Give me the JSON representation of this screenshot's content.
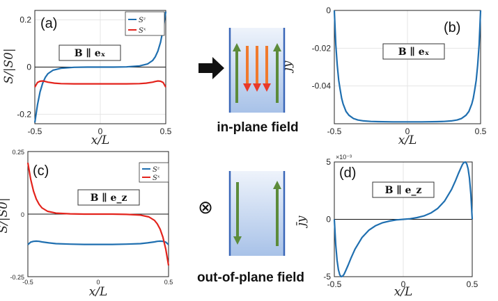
{
  "chart_data": [
    {
      "id": "a",
      "type": "line",
      "panel_label": "(a)",
      "field_box": "B ∥ eₓ",
      "xlabel": "x/L",
      "ylabel": "S/|S0|",
      "xlim": [
        -0.5,
        0.5
      ],
      "ylim": [
        -0.24,
        0.24
      ],
      "xticks": [
        "-0.5",
        "0",
        "0.5"
      ],
      "yticks": [
        {
          "v": 0.2,
          "t": "0.2"
        },
        {
          "v": 0,
          "t": "0"
        },
        {
          "v": -0.2,
          "t": "-0.2"
        }
      ],
      "grid": true,
      "legend": "top-right",
      "series": [
        {
          "name": "Sz",
          "color": "#1f6fb0",
          "x": [
            -0.5,
            -0.48,
            -0.46,
            -0.44,
            -0.42,
            -0.4,
            -0.36,
            -0.3,
            -0.2,
            -0.1,
            0,
            0.1,
            0.2,
            0.3,
            0.36,
            0.4,
            0.42,
            0.44,
            0.46,
            0.48,
            0.5
          ],
          "y": [
            -0.235,
            -0.16,
            -0.105,
            -0.068,
            -0.044,
            -0.028,
            -0.013,
            -0.005,
            -0.001,
            0,
            0,
            0,
            0.001,
            0.005,
            0.013,
            0.028,
            0.044,
            0.068,
            0.105,
            0.16,
            0.235
          ]
        },
        {
          "name": "Sx",
          "color": "#e3231c",
          "x": [
            -0.5,
            -0.48,
            -0.46,
            -0.44,
            -0.42,
            -0.4,
            -0.35,
            -0.3,
            -0.2,
            -0.1,
            0,
            0.1,
            0.2,
            0.3,
            0.35,
            0.4,
            0.42,
            0.44,
            0.46,
            0.48,
            0.5
          ],
          "y": [
            -0.085,
            -0.065,
            -0.06,
            -0.059,
            -0.061,
            -0.064,
            -0.068,
            -0.07,
            -0.071,
            -0.071,
            -0.071,
            -0.071,
            -0.071,
            -0.07,
            -0.068,
            -0.064,
            -0.061,
            -0.059,
            -0.06,
            -0.065,
            -0.085
          ]
        }
      ]
    },
    {
      "id": "b",
      "type": "line",
      "panel_label": "(b)",
      "field_box": "B ∥ eₓ",
      "xlabel": "x/L",
      "ylabel": "j̄y",
      "xlim": [
        -0.5,
        0.5
      ],
      "ylim": [
        -0.06,
        0
      ],
      "xticks": [
        "-0.5",
        "0",
        "0.5"
      ],
      "yticks": [
        {
          "v": 0,
          "t": "0"
        },
        {
          "v": -0.02,
          "t": "-0.02"
        },
        {
          "v": -0.04,
          "t": "-0.04"
        }
      ],
      "grid": true,
      "series": [
        {
          "name": "",
          "color": "#1f6fb0",
          "x": [
            -0.5,
            -0.49,
            -0.48,
            -0.47,
            -0.46,
            -0.45,
            -0.44,
            -0.42,
            -0.4,
            -0.37,
            -0.34,
            -0.3,
            -0.25,
            -0.2,
            -0.1,
            0,
            0.1,
            0.2,
            0.25,
            0.3,
            0.34,
            0.37,
            0.4,
            0.42,
            0.44,
            0.45,
            0.46,
            0.47,
            0.48,
            0.49,
            0.5
          ],
          "y": [
            0,
            -0.018,
            -0.029,
            -0.037,
            -0.042,
            -0.0465,
            -0.0495,
            -0.0535,
            -0.0555,
            -0.0572,
            -0.058,
            -0.0585,
            -0.0588,
            -0.0589,
            -0.059,
            -0.059,
            -0.059,
            -0.0589,
            -0.0588,
            -0.0585,
            -0.058,
            -0.0572,
            -0.0555,
            -0.0535,
            -0.0495,
            -0.0465,
            -0.042,
            -0.037,
            -0.029,
            -0.018,
            0
          ]
        }
      ]
    },
    {
      "id": "c",
      "type": "line",
      "panel_label": "(c)",
      "field_box": "B ∥ e_z",
      "xlabel": "x/L",
      "ylabel": "S/|S0|",
      "xlim": [
        -0.5,
        0.5
      ],
      "ylim": [
        -0.25,
        0.25
      ],
      "xticks": [
        "-0.5",
        "0",
        "0.5"
      ],
      "yticks": [
        {
          "v": 0.25,
          "t": "0.25"
        },
        {
          "v": 0,
          "t": "0"
        },
        {
          "v": -0.25,
          "t": "-0.25"
        }
      ],
      "grid": false,
      "legend": "top-right",
      "series": [
        {
          "name": "Sz",
          "color": "#1f6fb0",
          "x": [
            -0.5,
            -0.48,
            -0.46,
            -0.44,
            -0.42,
            -0.4,
            -0.35,
            -0.3,
            -0.2,
            -0.1,
            0,
            0.1,
            0.2,
            0.3,
            0.35,
            0.4,
            0.42,
            0.44,
            0.46,
            0.48,
            0.5
          ],
          "y": [
            -0.122,
            -0.112,
            -0.109,
            -0.108,
            -0.109,
            -0.111,
            -0.115,
            -0.118,
            -0.12,
            -0.121,
            -0.121,
            -0.121,
            -0.12,
            -0.118,
            -0.115,
            -0.111,
            -0.109,
            -0.108,
            -0.109,
            -0.112,
            -0.122
          ]
        },
        {
          "name": "Sx",
          "color": "#e3231c",
          "x": [
            -0.5,
            -0.48,
            -0.46,
            -0.44,
            -0.42,
            -0.4,
            -0.36,
            -0.3,
            -0.2,
            -0.1,
            0,
            0.1,
            0.2,
            0.3,
            0.36,
            0.4,
            0.42,
            0.44,
            0.46,
            0.48,
            0.5
          ],
          "y": [
            0.205,
            0.14,
            0.092,
            0.06,
            0.039,
            0.025,
            0.011,
            0.004,
            0.001,
            0,
            0,
            0,
            -0.001,
            -0.004,
            -0.011,
            -0.025,
            -0.039,
            -0.06,
            -0.092,
            -0.14,
            -0.205
          ]
        }
      ]
    },
    {
      "id": "d",
      "type": "line",
      "panel_label": "(d)",
      "field_box": "B ∥ e_z",
      "xlabel": "x/L",
      "ylabel": "j̄y",
      "exponent": "×10⁻³",
      "xlim": [
        -0.5,
        0.5
      ],
      "ylim": [
        -5,
        5
      ],
      "xticks": [
        "-0.5",
        "0",
        "0.5"
      ],
      "yticks": [
        {
          "v": 5,
          "t": "5"
        },
        {
          "v": 0,
          "t": "0"
        },
        {
          "v": -5,
          "t": "-5"
        }
      ],
      "grid": true,
      "series": [
        {
          "name": "",
          "color": "#1f6fb0",
          "x": [
            -0.5,
            -0.49,
            -0.48,
            -0.47,
            -0.46,
            -0.45,
            -0.44,
            -0.43,
            -0.42,
            -0.4,
            -0.38,
            -0.35,
            -0.3,
            -0.25,
            -0.2,
            -0.15,
            -0.1,
            -0.05,
            0,
            0.05,
            0.1,
            0.15,
            0.2,
            0.25,
            0.3,
            0.35,
            0.38,
            0.4,
            0.42,
            0.43,
            0.44,
            0.45,
            0.46,
            0.47,
            0.48,
            0.49,
            0.5
          ],
          "y": [
            0,
            -2.2,
            -3.6,
            -4.4,
            -4.85,
            -5.0,
            -4.95,
            -4.8,
            -4.55,
            -4.0,
            -3.4,
            -2.6,
            -1.6,
            -0.95,
            -0.55,
            -0.3,
            -0.15,
            -0.05,
            0,
            0.05,
            0.15,
            0.3,
            0.55,
            0.95,
            1.6,
            2.6,
            3.4,
            4.0,
            4.55,
            4.8,
            4.95,
            5.0,
            4.85,
            4.4,
            3.6,
            2.2,
            0
          ]
        }
      ]
    }
  ],
  "legend_labels": {
    "sz": "Sᶻ",
    "sx": "Sˣ"
  },
  "middle": {
    "top_caption": "in-plane field",
    "bottom_caption": "out-of-plane field",
    "otimes_symbol": "⊗",
    "colors": {
      "green": "#5c8b3a",
      "red": "#e8392a",
      "orange": "#f07a2e",
      "blue_edge": "#3a67b8",
      "fill_top": "#eef3fb",
      "fill_bottom": "#a8c2e8"
    }
  }
}
